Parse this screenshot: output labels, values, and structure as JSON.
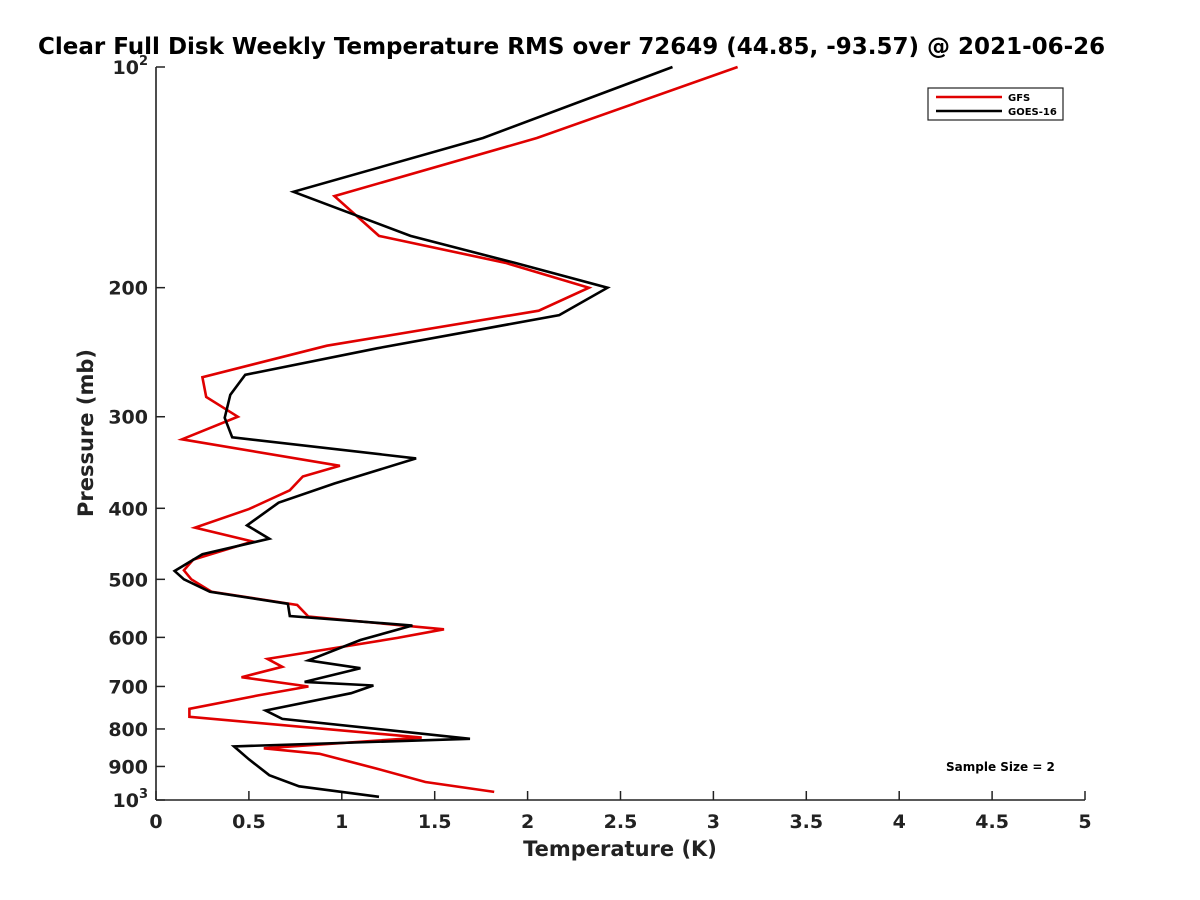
{
  "chart_data": {
    "type": "line",
    "title": "Clear Full Disk Weekly Temperature RMS over 72649 (44.85, -93.57) @ 2021-06-26",
    "xlabel": "Temperature (K)",
    "ylabel": "Pressure (mb)",
    "xlim": [
      0,
      5
    ],
    "ylim": [
      100,
      1000
    ],
    "y_scale": "log",
    "y_reversed": true,
    "x_ticks": [
      "0",
      "0.5",
      "1",
      "1.5",
      "2",
      "2.5",
      "3",
      "3.5",
      "4",
      "4.5",
      "5"
    ],
    "y_ticks": [
      {
        "value": 100,
        "base": "10",
        "exp": "2"
      },
      {
        "value": 200,
        "label": "200"
      },
      {
        "value": 300,
        "label": "300"
      },
      {
        "value": 400,
        "label": "400"
      },
      {
        "value": 500,
        "label": "500"
      },
      {
        "value": 600,
        "label": "600"
      },
      {
        "value": 700,
        "label": "700"
      },
      {
        "value": 800,
        "label": "800"
      },
      {
        "value": 900,
        "label": "900"
      },
      {
        "value": 1000,
        "base": "10",
        "exp": "3"
      }
    ],
    "grid": false,
    "legend_position": "top-right",
    "series": [
      {
        "name": "GFS",
        "color": "#e00000",
        "points": [
          [
            3.13,
            100
          ],
          [
            2.05,
            125
          ],
          [
            0.96,
            150
          ],
          [
            1.2,
            170
          ],
          [
            1.88,
            185
          ],
          [
            2.33,
            200
          ],
          [
            2.06,
            215
          ],
          [
            0.92,
            240
          ],
          [
            0.25,
            265
          ],
          [
            0.27,
            282
          ],
          [
            0.44,
            300
          ],
          [
            0.14,
            322
          ],
          [
            0.99,
            350
          ],
          [
            0.79,
            362
          ],
          [
            0.72,
            378
          ],
          [
            0.5,
            401
          ],
          [
            0.21,
            425
          ],
          [
            0.52,
            444
          ],
          [
            0.2,
            470
          ],
          [
            0.15,
            486
          ],
          [
            0.19,
            500
          ],
          [
            0.3,
            520
          ],
          [
            0.76,
            542
          ],
          [
            0.82,
            562
          ],
          [
            1.55,
            585
          ],
          [
            1.3,
            601
          ],
          [
            0.6,
            642
          ],
          [
            0.68,
            658
          ],
          [
            0.46,
            680
          ],
          [
            0.82,
            700
          ],
          [
            0.55,
            720
          ],
          [
            0.18,
            751
          ],
          [
            0.18,
            770
          ],
          [
            1.43,
            822
          ],
          [
            0.58,
            850
          ],
          [
            0.88,
            865
          ],
          [
            1.18,
            905
          ],
          [
            1.45,
            945
          ],
          [
            1.82,
            975
          ]
        ]
      },
      {
        "name": "GOES-16",
        "color": "#000000",
        "points": [
          [
            2.78,
            100
          ],
          [
            1.76,
            125
          ],
          [
            0.74,
            148
          ],
          [
            1.37,
            170
          ],
          [
            1.93,
            185
          ],
          [
            2.43,
            200
          ],
          [
            2.17,
            218
          ],
          [
            1.19,
            242
          ],
          [
            0.48,
            263
          ],
          [
            0.4,
            280
          ],
          [
            0.37,
            301
          ],
          [
            0.41,
            320
          ],
          [
            1.4,
            342
          ],
          [
            0.96,
            370
          ],
          [
            0.66,
            393
          ],
          [
            0.49,
            422
          ],
          [
            0.61,
            440
          ],
          [
            0.25,
            462
          ],
          [
            0.1,
            487
          ],
          [
            0.15,
            500
          ],
          [
            0.29,
            520
          ],
          [
            0.71,
            540
          ],
          [
            0.72,
            561
          ],
          [
            1.38,
            578
          ],
          [
            1.1,
            605
          ],
          [
            0.82,
            645
          ],
          [
            1.1,
            661
          ],
          [
            0.8,
            690
          ],
          [
            1.17,
            698
          ],
          [
            1.05,
            715
          ],
          [
            0.59,
            755
          ],
          [
            0.68,
            775
          ],
          [
            1.69,
            825
          ],
          [
            0.42,
            845
          ],
          [
            0.5,
            880
          ],
          [
            0.61,
            925
          ],
          [
            0.77,
            958
          ],
          [
            1.2,
            990
          ]
        ]
      }
    ],
    "annotations": [
      "Sample Size = 2"
    ]
  }
}
